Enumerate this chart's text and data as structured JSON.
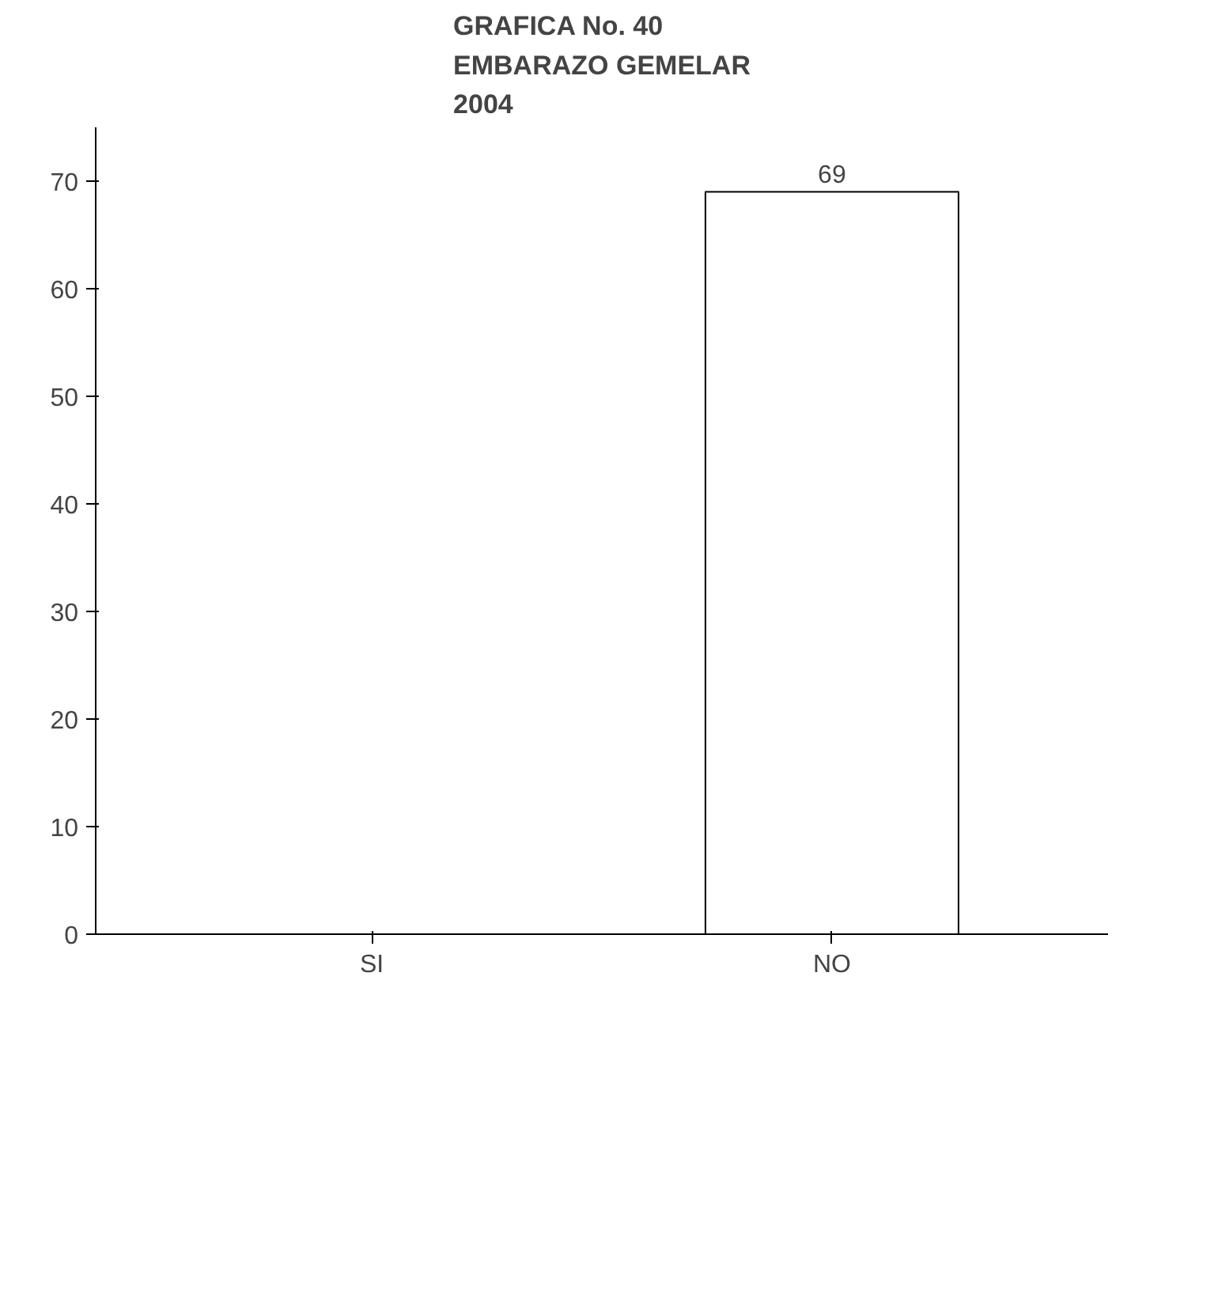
{
  "chart_data": {
    "type": "bar",
    "title": "GRAFICA No. 40\nEMBARAZO GEMELAR\n2004",
    "categories": [
      "SI",
      "NO"
    ],
    "values": [
      0,
      69
    ],
    "colors": [
      "#000000",
      "#ffffff"
    ],
    "value_labels": [
      null,
      "69"
    ],
    "ylim": [
      0,
      75
    ],
    "yticks": [
      0,
      10,
      20,
      30,
      40,
      50,
      60,
      70
    ],
    "grid": false
  }
}
